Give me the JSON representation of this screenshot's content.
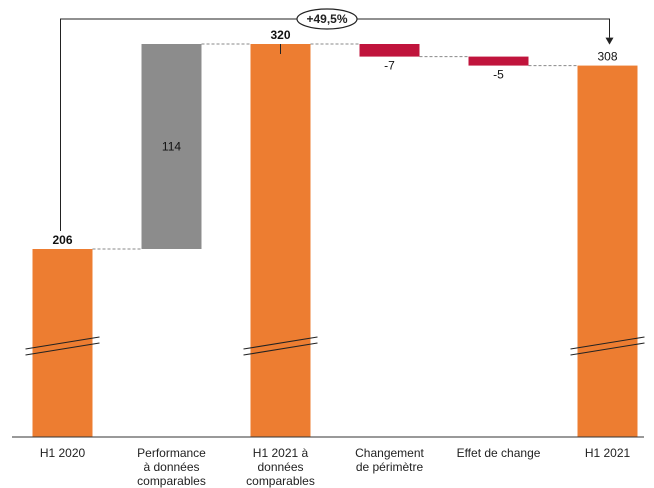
{
  "chart_data": {
    "type": "bar",
    "subtype": "waterfall",
    "categories": [
      [
        "H1 2020"
      ],
      [
        "Performance",
        "à données",
        "comparables"
      ],
      [
        "H1 2021 à",
        "données",
        "comparables"
      ],
      [
        "Changement",
        "de périmètre"
      ],
      [
        "Effet de change"
      ],
      [
        "H1 2021"
      ]
    ],
    "bars": [
      {
        "kind": "total",
        "value": 206,
        "label": "206",
        "bold": true,
        "color": "#ED7D31",
        "label_pos": "top"
      },
      {
        "kind": "delta",
        "value": 114,
        "label": "114",
        "bold": false,
        "color": "#8C8C8C",
        "label_pos": "inside"
      },
      {
        "kind": "total",
        "value": 320,
        "label": "320",
        "bold": true,
        "color": "#ED7D31",
        "label_pos": "top"
      },
      {
        "kind": "delta",
        "value": -7,
        "label": "-7",
        "bold": false,
        "color": "#C0143C",
        "label_pos": "below"
      },
      {
        "kind": "delta",
        "value": -5,
        "label": "-5",
        "bold": false,
        "color": "#C0143C",
        "label_pos": "below"
      },
      {
        "kind": "total",
        "value": 308,
        "label": "308",
        "bold": false,
        "color": "#ED7D31",
        "label_pos": "top"
      }
    ],
    "annotation": {
      "text": "+49,5%",
      "from_index": 0,
      "to_index": 5
    },
    "axis_break": true,
    "grid": false,
    "legend": "none"
  }
}
